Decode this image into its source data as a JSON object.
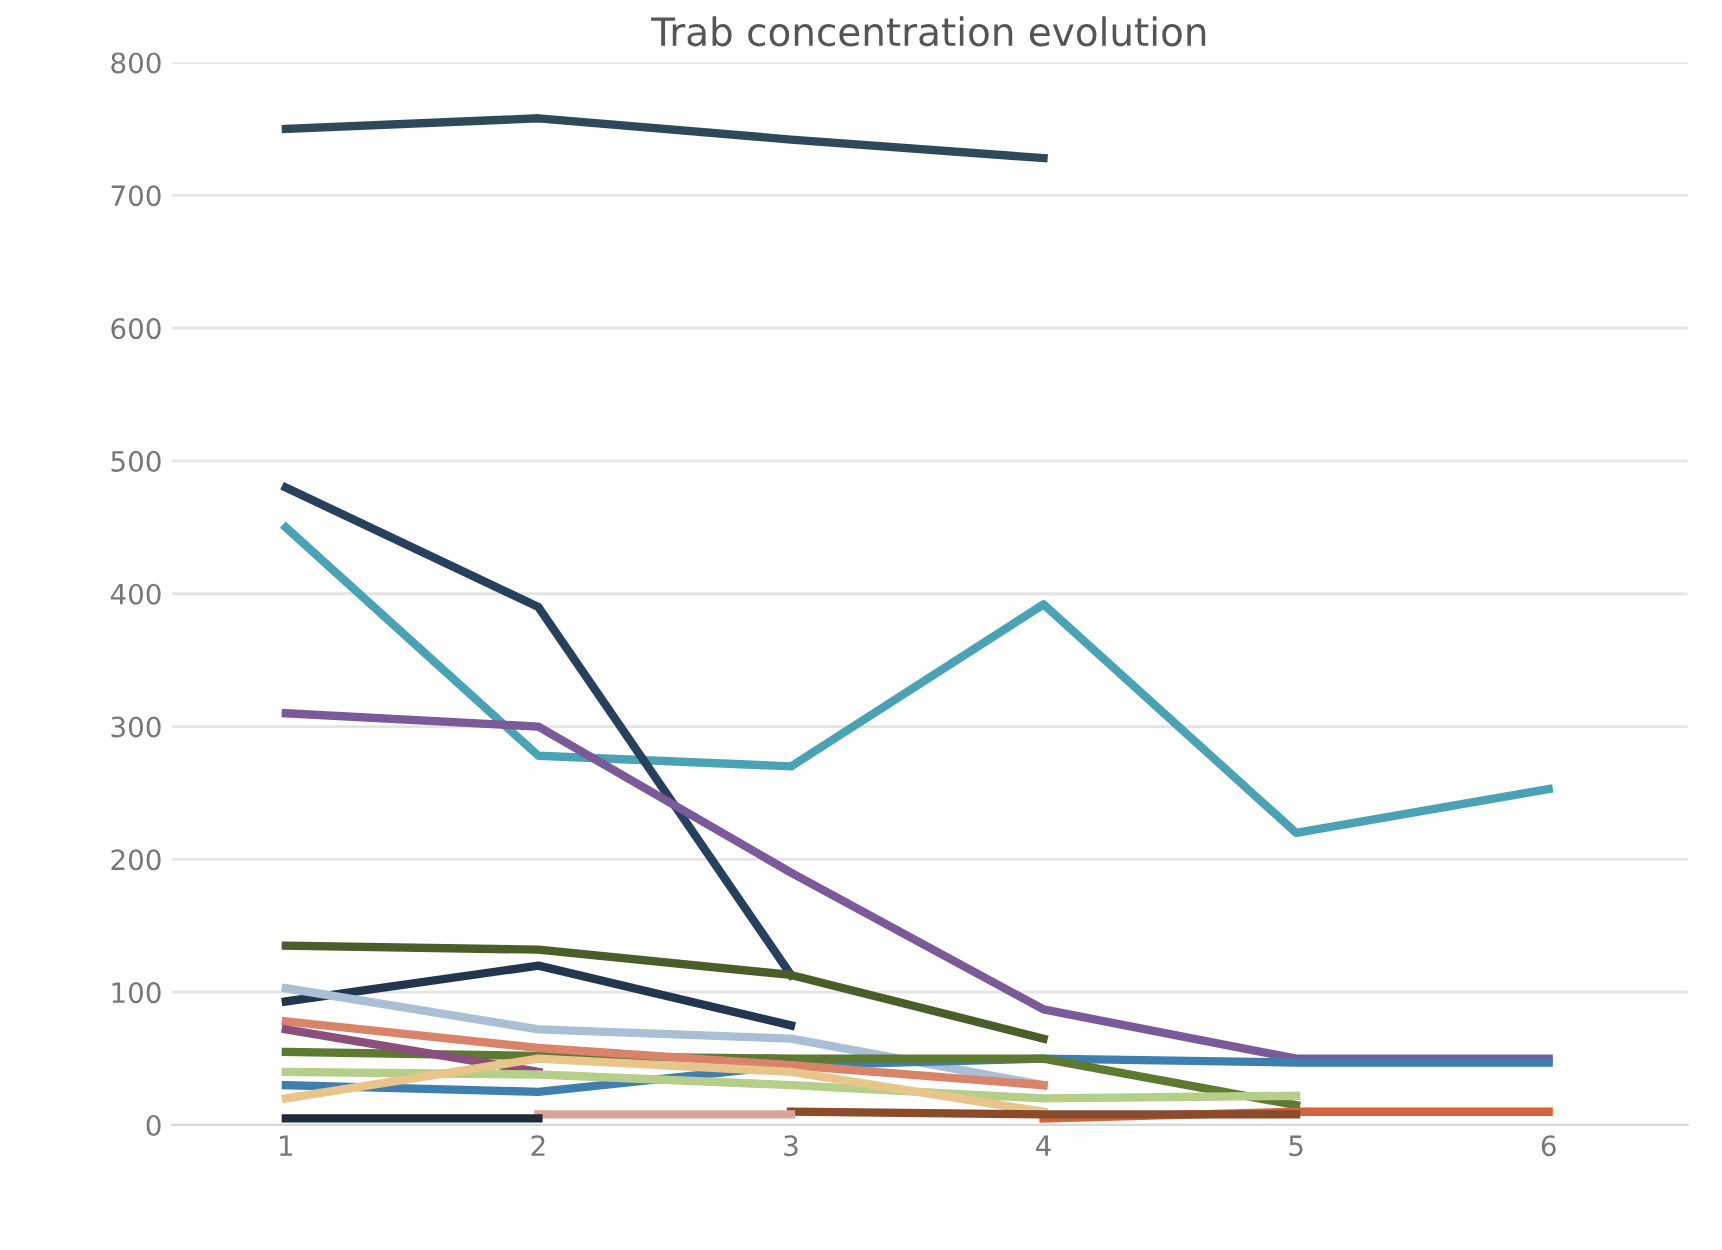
{
  "chart_data": {
    "type": "line",
    "title": "Trab concentration evolution",
    "categories": [
      "1",
      "2",
      "3",
      "4",
      "5",
      "6"
    ],
    "ylim": [
      0,
      800
    ],
    "yticks": [
      0,
      100,
      200,
      300,
      400,
      500,
      600,
      700,
      800
    ],
    "grid": "y",
    "legend": false,
    "marker": "none",
    "line_style": "solid",
    "series": [
      {
        "color": "#2e4a5a",
        "values": [
          750,
          758,
          742,
          728,
          null,
          null
        ]
      },
      {
        "color": "#4aa3b5",
        "values": [
          450,
          278,
          270,
          392,
          220,
          253
        ]
      },
      {
        "color": "#26405e",
        "values": [
          480,
          390,
          113,
          null,
          null,
          null
        ]
      },
      {
        "color": "#7b5a9a",
        "values": [
          310,
          300,
          190,
          87,
          50,
          50
        ]
      },
      {
        "color": "#4a5e2a",
        "values": [
          135,
          132,
          113,
          65,
          null,
          null
        ]
      },
      {
        "color": "#23364f",
        "values": [
          93,
          120,
          75,
          null,
          null,
          null
        ]
      },
      {
        "color": "#a9bfd6",
        "values": [
          103,
          72,
          65,
          30,
          null,
          null
        ]
      },
      {
        "color": "#3f7fb0",
        "values": [
          30,
          25,
          45,
          50,
          47,
          47
        ]
      },
      {
        "color": "#5d7a30",
        "values": [
          55,
          52,
          50,
          50,
          15,
          null
        ]
      },
      {
        "color": "#d9846a",
        "values": [
          78,
          58,
          45,
          30,
          null,
          null
        ]
      },
      {
        "color": "#8a4f7a",
        "values": [
          72,
          40,
          null,
          null,
          null,
          null
        ]
      },
      {
        "color": "#b5cf8a",
        "values": [
          40,
          38,
          30,
          20,
          22,
          null
        ]
      },
      {
        "color": "#e8c58a",
        "values": [
          20,
          50,
          40,
          10,
          null,
          null
        ]
      },
      {
        "color": "#d4623a",
        "values": [
          null,
          null,
          null,
          5,
          10,
          10
        ]
      },
      {
        "color": "#8b4a2a",
        "values": [
          null,
          null,
          10,
          8,
          8,
          null
        ]
      },
      {
        "color": "#d9a49a",
        "values": [
          null,
          8,
          8,
          null,
          null,
          null
        ]
      },
      {
        "color": "#1f2a3a",
        "values": [
          5,
          5,
          null,
          null,
          null,
          null
        ]
      }
    ]
  }
}
